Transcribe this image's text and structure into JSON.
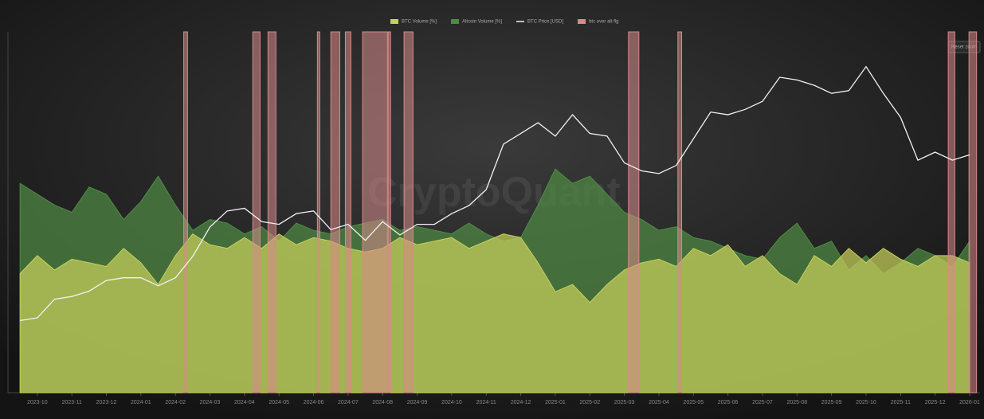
{
  "chart_data": {
    "type": "area-line",
    "watermark": "CryptoQuant",
    "reset_button": "Reset zoom",
    "x": [
      -0.5,
      0,
      0.5,
      1,
      1.5,
      2,
      2.5,
      3,
      3.5,
      4,
      4.5,
      5,
      5.5,
      6,
      6.5,
      7,
      7.5,
      8,
      8.5,
      9,
      9.5,
      10,
      10.5,
      11,
      11.5,
      12,
      12.5,
      13,
      13.5,
      14,
      14.5,
      15,
      15.5,
      16,
      16.5,
      17,
      17.5,
      18,
      18.5,
      19,
      19.5,
      20,
      20.5,
      21,
      21.5,
      22,
      22.5,
      23,
      23.5,
      24,
      24.5,
      25,
      25.5,
      26,
      26.5,
      27
    ],
    "xlim": [
      -0.85,
      27.3
    ],
    "xticks": [
      {
        "value": 0,
        "label": "2023-10"
      },
      {
        "value": 1,
        "label": "2023-11"
      },
      {
        "value": 2,
        "label": "2023-12"
      },
      {
        "value": 3,
        "label": "2024-01"
      },
      {
        "value": 4,
        "label": "2024-02"
      },
      {
        "value": 5,
        "label": "2024-03"
      },
      {
        "value": 6,
        "label": "2024-04"
      },
      {
        "value": 7,
        "label": "2024-05"
      },
      {
        "value": 8,
        "label": "2024-06"
      },
      {
        "value": 9,
        "label": "2024-07"
      },
      {
        "value": 10,
        "label": "2024-08"
      },
      {
        "value": 11,
        "label": "2024-09"
      },
      {
        "value": 12,
        "label": "2024-10"
      },
      {
        "value": 13,
        "label": "2024-11"
      },
      {
        "value": 14,
        "label": "2024-12"
      },
      {
        "value": 15,
        "label": "2025-01"
      },
      {
        "value": 16,
        "label": "2025-02"
      },
      {
        "value": 17,
        "label": "2025-03"
      },
      {
        "value": 18,
        "label": "2025-04"
      },
      {
        "value": 19,
        "label": "2025-05"
      },
      {
        "value": 20,
        "label": "2025-06"
      },
      {
        "value": 21,
        "label": "2025-07"
      },
      {
        "value": 22,
        "label": "2025-08"
      },
      {
        "value": 23,
        "label": "2025-09"
      },
      {
        "value": 24,
        "label": "2025-10"
      },
      {
        "value": 25,
        "label": "2025-11"
      },
      {
        "value": 26,
        "label": "2025-12"
      },
      {
        "value": 27,
        "label": "2026-01"
      }
    ],
    "ylim": [
      0,
      100
    ],
    "y2lim": [
      0,
      135000
    ],
    "series": [
      {
        "name": "BTC Volume [%]",
        "kind": "area",
        "color": "#c8cf5a",
        "values": [
          33,
          38,
          34,
          37,
          36,
          35,
          40,
          36,
          30,
          38,
          44,
          41,
          40,
          43,
          40,
          44,
          41,
          43,
          42,
          40,
          39,
          40,
          43,
          41,
          42,
          43,
          40,
          42,
          44,
          43,
          36,
          28,
          30,
          25,
          30,
          34,
          36,
          37,
          35,
          40,
          38,
          41,
          35,
          38,
          33,
          30,
          38,
          35,
          40,
          36,
          40,
          37,
          35,
          38,
          38,
          36
        ]
      },
      {
        "name": "Altcoin Volume [%]",
        "kind": "area",
        "color": "#4f8a45",
        "values": [
          58,
          55,
          52,
          50,
          57,
          55,
          48,
          53,
          60,
          52,
          45,
          48,
          47,
          44,
          46,
          42,
          47,
          45,
          44,
          46,
          47,
          48,
          45,
          46,
          45,
          44,
          47,
          44,
          42,
          43,
          52,
          62,
          58,
          60,
          55,
          50,
          48,
          45,
          46,
          43,
          42,
          40,
          38,
          37,
          43,
          47,
          40,
          42,
          34,
          38,
          33,
          36,
          40,
          38,
          35,
          42
        ]
      },
      {
        "name": "BTC Price [USD]",
        "kind": "line",
        "axis": "y2",
        "color": "#f2f2f2",
        "values": [
          27000,
          28000,
          35000,
          36000,
          38000,
          42000,
          43000,
          43000,
          40000,
          43000,
          51000,
          62000,
          68000,
          69000,
          64000,
          63000,
          67000,
          68000,
          61000,
          63000,
          57000,
          64000,
          59000,
          63000,
          63000,
          67000,
          70000,
          76000,
          93000,
          97000,
          101000,
          96000,
          104000,
          97000,
          96000,
          86000,
          83000,
          82000,
          85000,
          95000,
          105000,
          104000,
          106000,
          109000,
          118000,
          117000,
          115000,
          112000,
          113000,
          122000,
          112000,
          103000,
          87000,
          90000,
          87000,
          89000
        ]
      },
      {
        "name": "btc over alt flg",
        "kind": "flag",
        "color": "#d88a8a",
        "ranges": [
          [
            4.24,
            4.35
          ],
          [
            6.24,
            6.45
          ],
          [
            6.68,
            6.91
          ],
          [
            8.11,
            8.18
          ],
          [
            8.5,
            8.76
          ],
          [
            8.92,
            9.08
          ],
          [
            9.42,
            10.14
          ],
          [
            10.16,
            10.23
          ],
          [
            10.62,
            10.88
          ],
          [
            17.12,
            17.42
          ],
          [
            18.55,
            18.66
          ],
          [
            26.38,
            26.57
          ],
          [
            26.98,
            27.2
          ]
        ]
      }
    ]
  }
}
